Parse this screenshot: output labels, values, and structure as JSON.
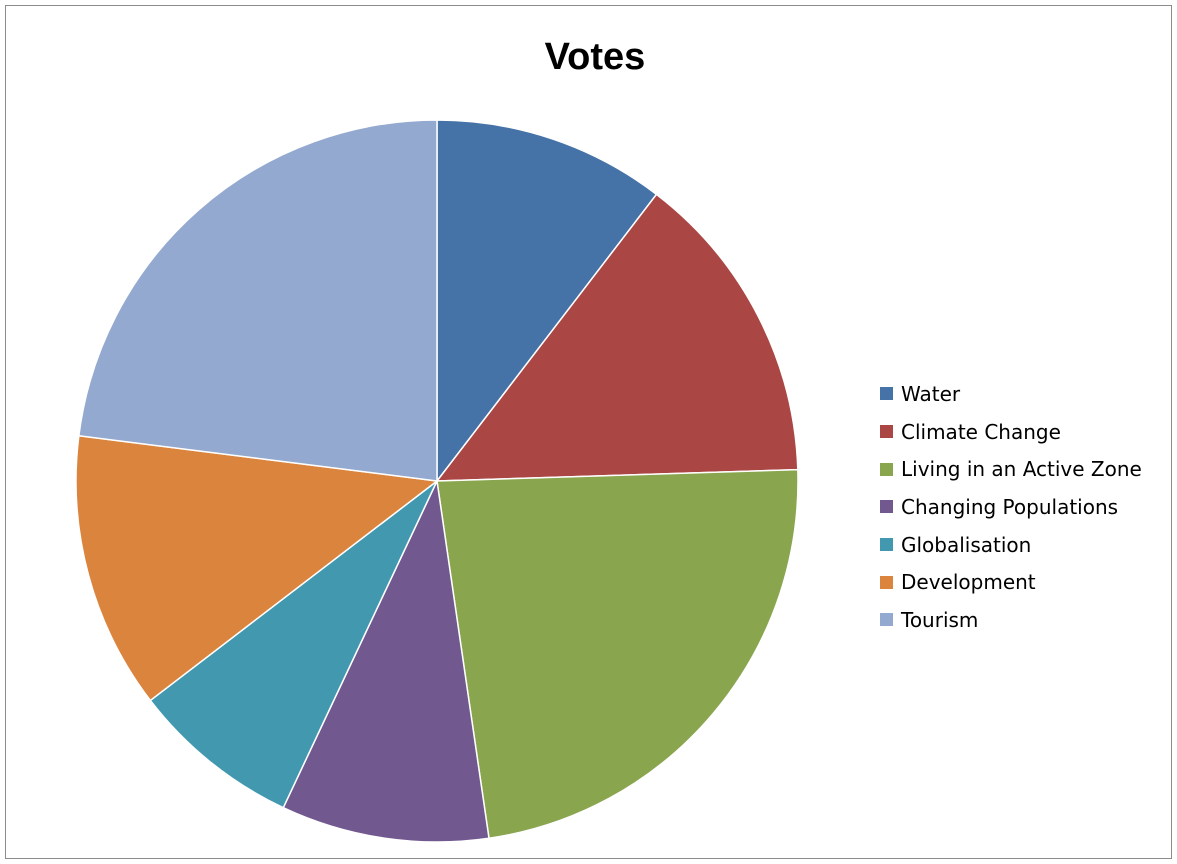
{
  "chart_data": {
    "type": "pie",
    "title": "Votes",
    "start_angle_deg": 90,
    "direction": "clockwise",
    "legend_position": "right",
    "slices": [
      {
        "label": "Water",
        "value": 10.4,
        "color": "#4572A7"
      },
      {
        "label": "Climate Change",
        "value": 14.1,
        "color": "#AA4643"
      },
      {
        "label": "Living in an Active Zone",
        "value": 23.2,
        "color": "#89A54E"
      },
      {
        "label": "Changing Populations",
        "value": 9.3,
        "color": "#71588F"
      },
      {
        "label": "Globalisation",
        "value": 7.6,
        "color": "#4198AF"
      },
      {
        "label": "Development",
        "value": 12.4,
        "color": "#DB843D"
      },
      {
        "label": "Tourism",
        "value": 23.0,
        "color": "#93A9CF"
      }
    ]
  }
}
